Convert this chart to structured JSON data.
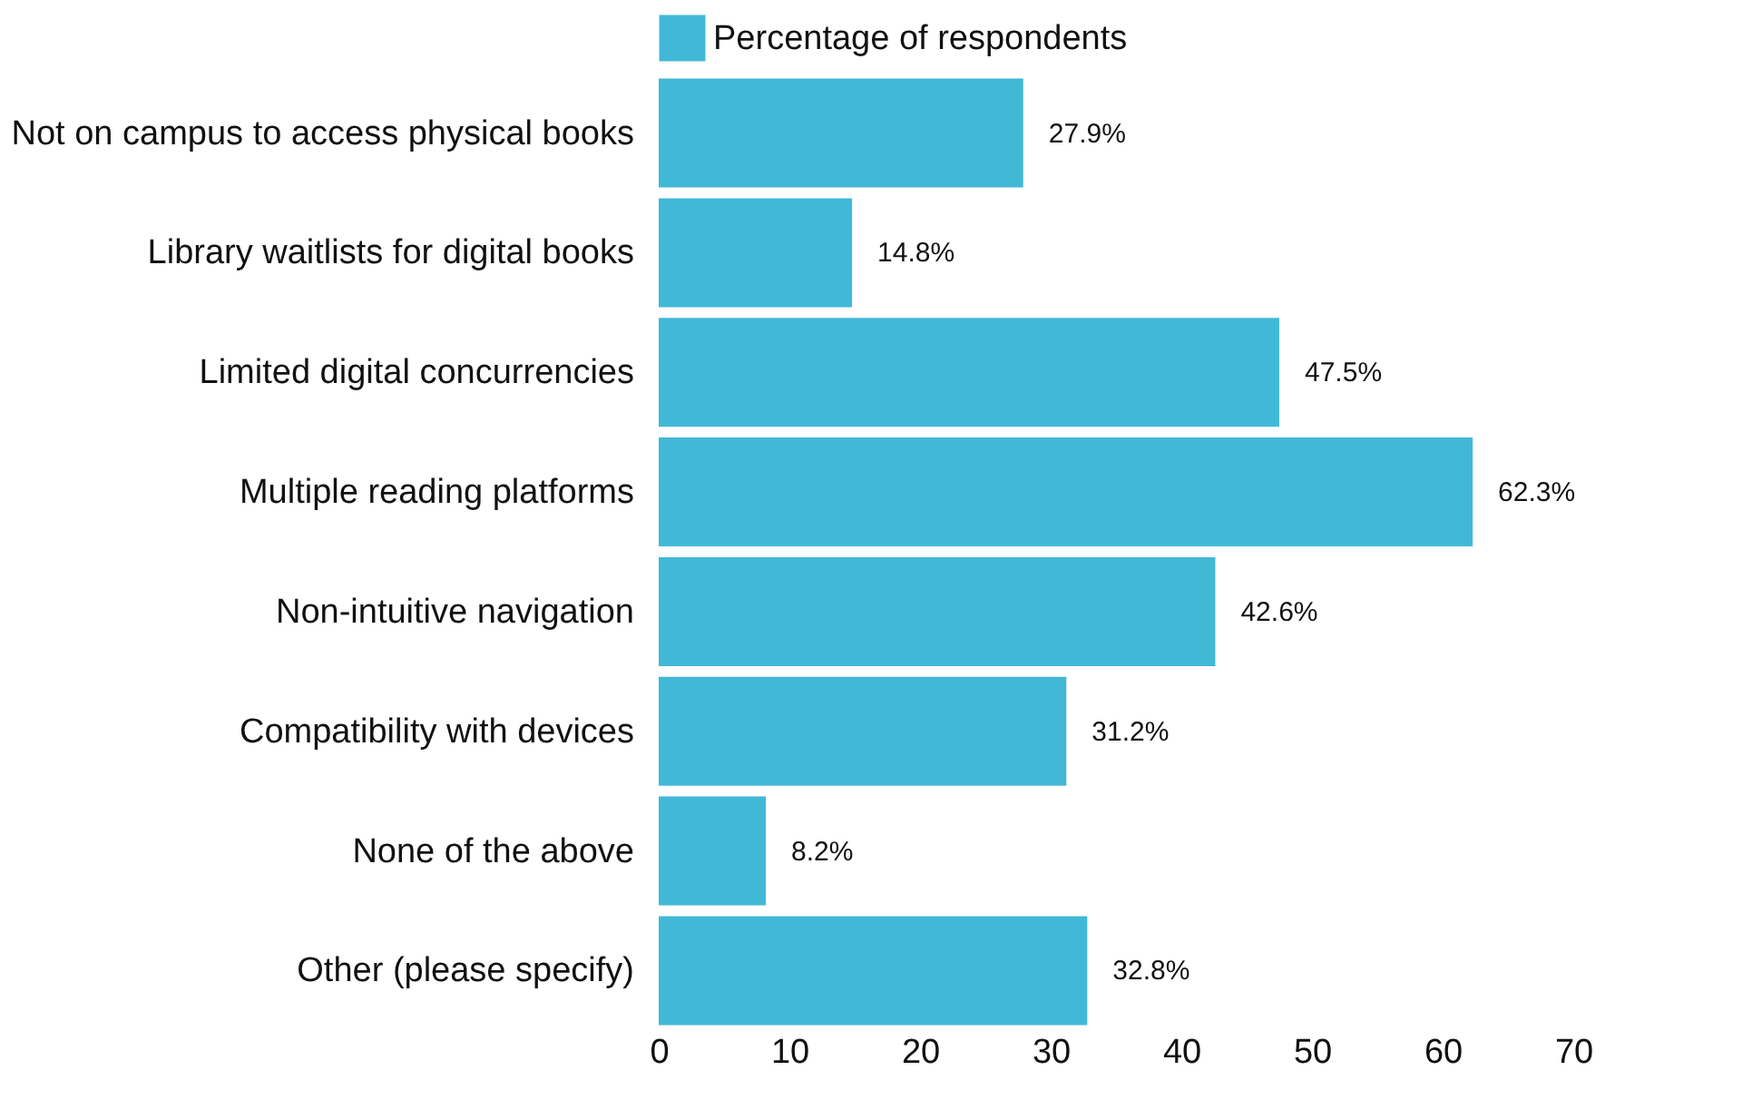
{
  "chart_data": {
    "type": "bar",
    "orientation": "horizontal",
    "categories": [
      "Not on campus to access physical books",
      "Library waitlists for digital books",
      "Limited digital concurrencies",
      "Multiple reading platforms",
      "Non-intuitive navigation",
      "Compatibility with devices",
      "None of the above",
      "Other (please specify)"
    ],
    "series": [
      {
        "name": "Percentage of respondents",
        "color": "#42b8d7",
        "values": [
          27.9,
          14.8,
          47.5,
          62.3,
          42.6,
          31.2,
          8.2,
          32.8
        ],
        "value_labels": [
          "27.9%",
          "14.8%",
          "47.5%",
          "62.3%",
          "42.6%",
          "31.2%",
          "8.2%",
          "32.8%"
        ]
      }
    ],
    "xlim": [
      0,
      70
    ],
    "xticks": [
      0,
      10,
      20,
      30,
      40,
      50,
      60,
      70
    ],
    "grid": false,
    "legend": "top"
  }
}
